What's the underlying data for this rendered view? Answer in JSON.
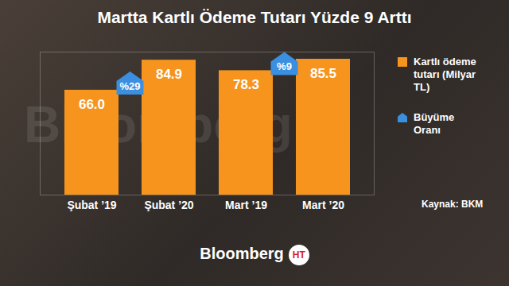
{
  "chart_data": {
    "type": "bar",
    "title": "Martta Kartlı Ödeme Tutarı Yüzde 9 Arttı",
    "categories": [
      "Şubat ’19",
      "Şubat ’20",
      "Mart ’19",
      "Mart ’20"
    ],
    "series": [
      {
        "name": "Kartlı ödeme tutarı (Milyar TL)",
        "color": "#f7941d",
        "values": [
          66.0,
          84.9,
          78.3,
          85.5
        ],
        "value_labels": [
          "66.0",
          "84.9",
          "78.3",
          "85.5"
        ]
      }
    ],
    "growth": {
      "name": "Büyüme Oranı",
      "color": "#3a8fe0",
      "values": [
        29,
        9
      ],
      "value_labels": [
        "%29",
        "%9"
      ]
    },
    "ylim": [
      0,
      90
    ],
    "yticks": [],
    "tick_labels": "x",
    "data_labels": true,
    "legend": "right",
    "source": "Kaynak: BKM",
    "footer": "Bloomberg",
    "logo": "HT",
    "watermark": "Bloomberg"
  }
}
